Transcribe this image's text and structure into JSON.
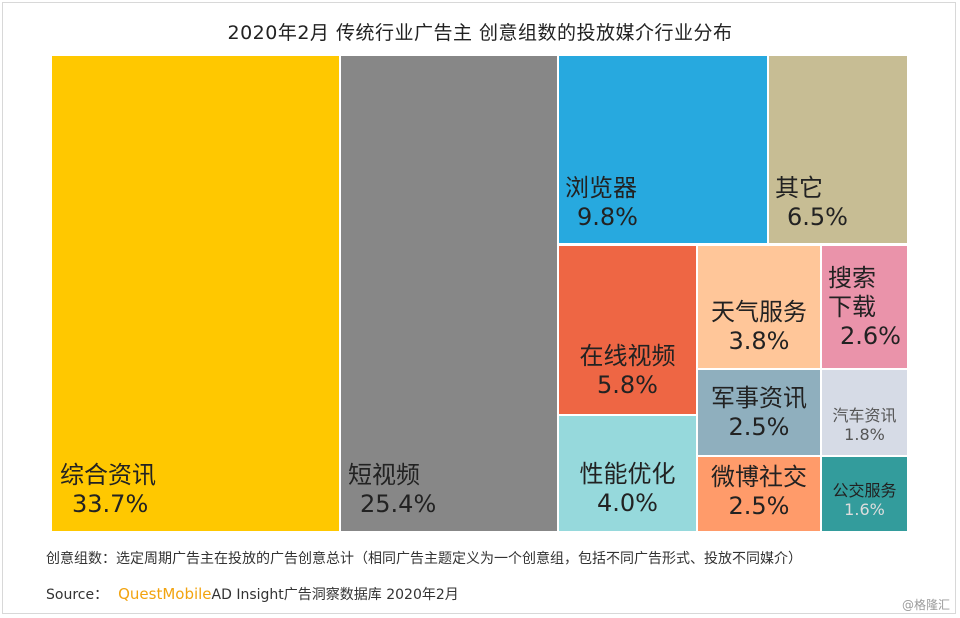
{
  "chart_data": {
    "type": "treemap",
    "title": "2020年2月 传统行业广告主 创意组数的投放媒介行业分布",
    "items": [
      {
        "name": "综合资讯",
        "value_label": "33.7%",
        "value": 33.7,
        "color": "#ffc800",
        "text_color": "#222222"
      },
      {
        "name": "短视频",
        "value_label": "25.4%",
        "value": 25.4,
        "color": "#878787",
        "text_color": "#222222"
      },
      {
        "name": "浏览器",
        "value_label": "9.8%",
        "value": 9.8,
        "color": "#27a9df",
        "text_color": "#222222"
      },
      {
        "name": "其它",
        "value_label": "6.5%",
        "value": 6.5,
        "color": "#c7bd94",
        "text_color": "#222222"
      },
      {
        "name": "在线视频",
        "value_label": "5.8%",
        "value": 5.8,
        "color": "#ee6644",
        "text_color": "#222222"
      },
      {
        "name": "天气服务",
        "value_label": "3.8%",
        "value": 3.8,
        "color": "#ffc699",
        "text_color": "#222222"
      },
      {
        "name": "搜索下载",
        "lines": [
          "搜索",
          "下载"
        ],
        "value_label": "2.6%",
        "value": 2.6,
        "color": "#ea93aa",
        "text_color": "#222222"
      },
      {
        "name": "军事资讯",
        "value_label": "2.5%",
        "value": 2.5,
        "color": "#8fafbe",
        "text_color": "#222222"
      },
      {
        "name": "汽车资讯",
        "value_label": "1.8%",
        "value": 1.8,
        "color": "#d6dbe6",
        "text_color": "#555555"
      },
      {
        "name": "性能优化",
        "value_label": "4.0%",
        "value": 4.0,
        "color": "#96d9dc",
        "text_color": "#222222"
      },
      {
        "name": "微博社交",
        "value_label": "2.5%",
        "value": 2.5,
        "color": "#ff9b6a",
        "text_color": "#222222"
      },
      {
        "name": "公交服务",
        "value_label": "1.6%",
        "value": 1.6,
        "color": "#339c9c",
        "text_color": "#222222",
        "value_color": "#dddddd"
      }
    ]
  },
  "footnote": "创意组数：选定周期广告主在投放的广告创意总计（相同广告主题定义为一个创意组，包括不同广告形式、投放不同媒介）",
  "source": {
    "prefix": "Source：",
    "brand": "QuestMobile",
    "rest": "AD Insight广告洞察数据库 2020年2月"
  },
  "watermark": "@格隆汇"
}
